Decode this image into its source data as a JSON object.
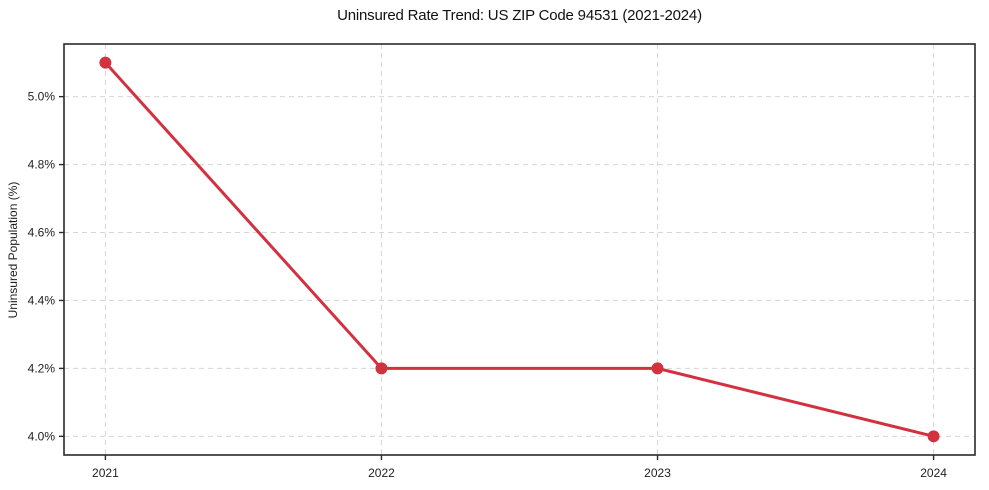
{
  "chart_data": {
    "type": "line",
    "title": "Uninsured Rate Trend: US ZIP Code 94531 (2021-2024)",
    "xlabel": "",
    "ylabel": "Uninsured Population (%)",
    "x": [
      2021,
      2022,
      2023,
      2024
    ],
    "values": [
      5.1,
      4.2,
      4.2,
      4.0
    ],
    "xticks": [
      "2021",
      "2022",
      "2023",
      "2024"
    ],
    "yticks": [
      "4.0%",
      "4.2%",
      "4.4%",
      "4.6%",
      "4.8%",
      "5.0%"
    ],
    "ytick_values": [
      4.0,
      4.2,
      4.4,
      4.6,
      4.8,
      5.0
    ],
    "xlim": [
      2020.85,
      2024.15
    ],
    "ylim": [
      3.945,
      5.155
    ],
    "grid": true,
    "grid_style": "dashed",
    "legend": false,
    "marker": "circle",
    "line_color": "#d23240",
    "grid_color": "#d6d6d6",
    "axis_color": "#2a2a2a",
    "text_color": "#1f1f1f",
    "background_color": "#ffffff"
  }
}
